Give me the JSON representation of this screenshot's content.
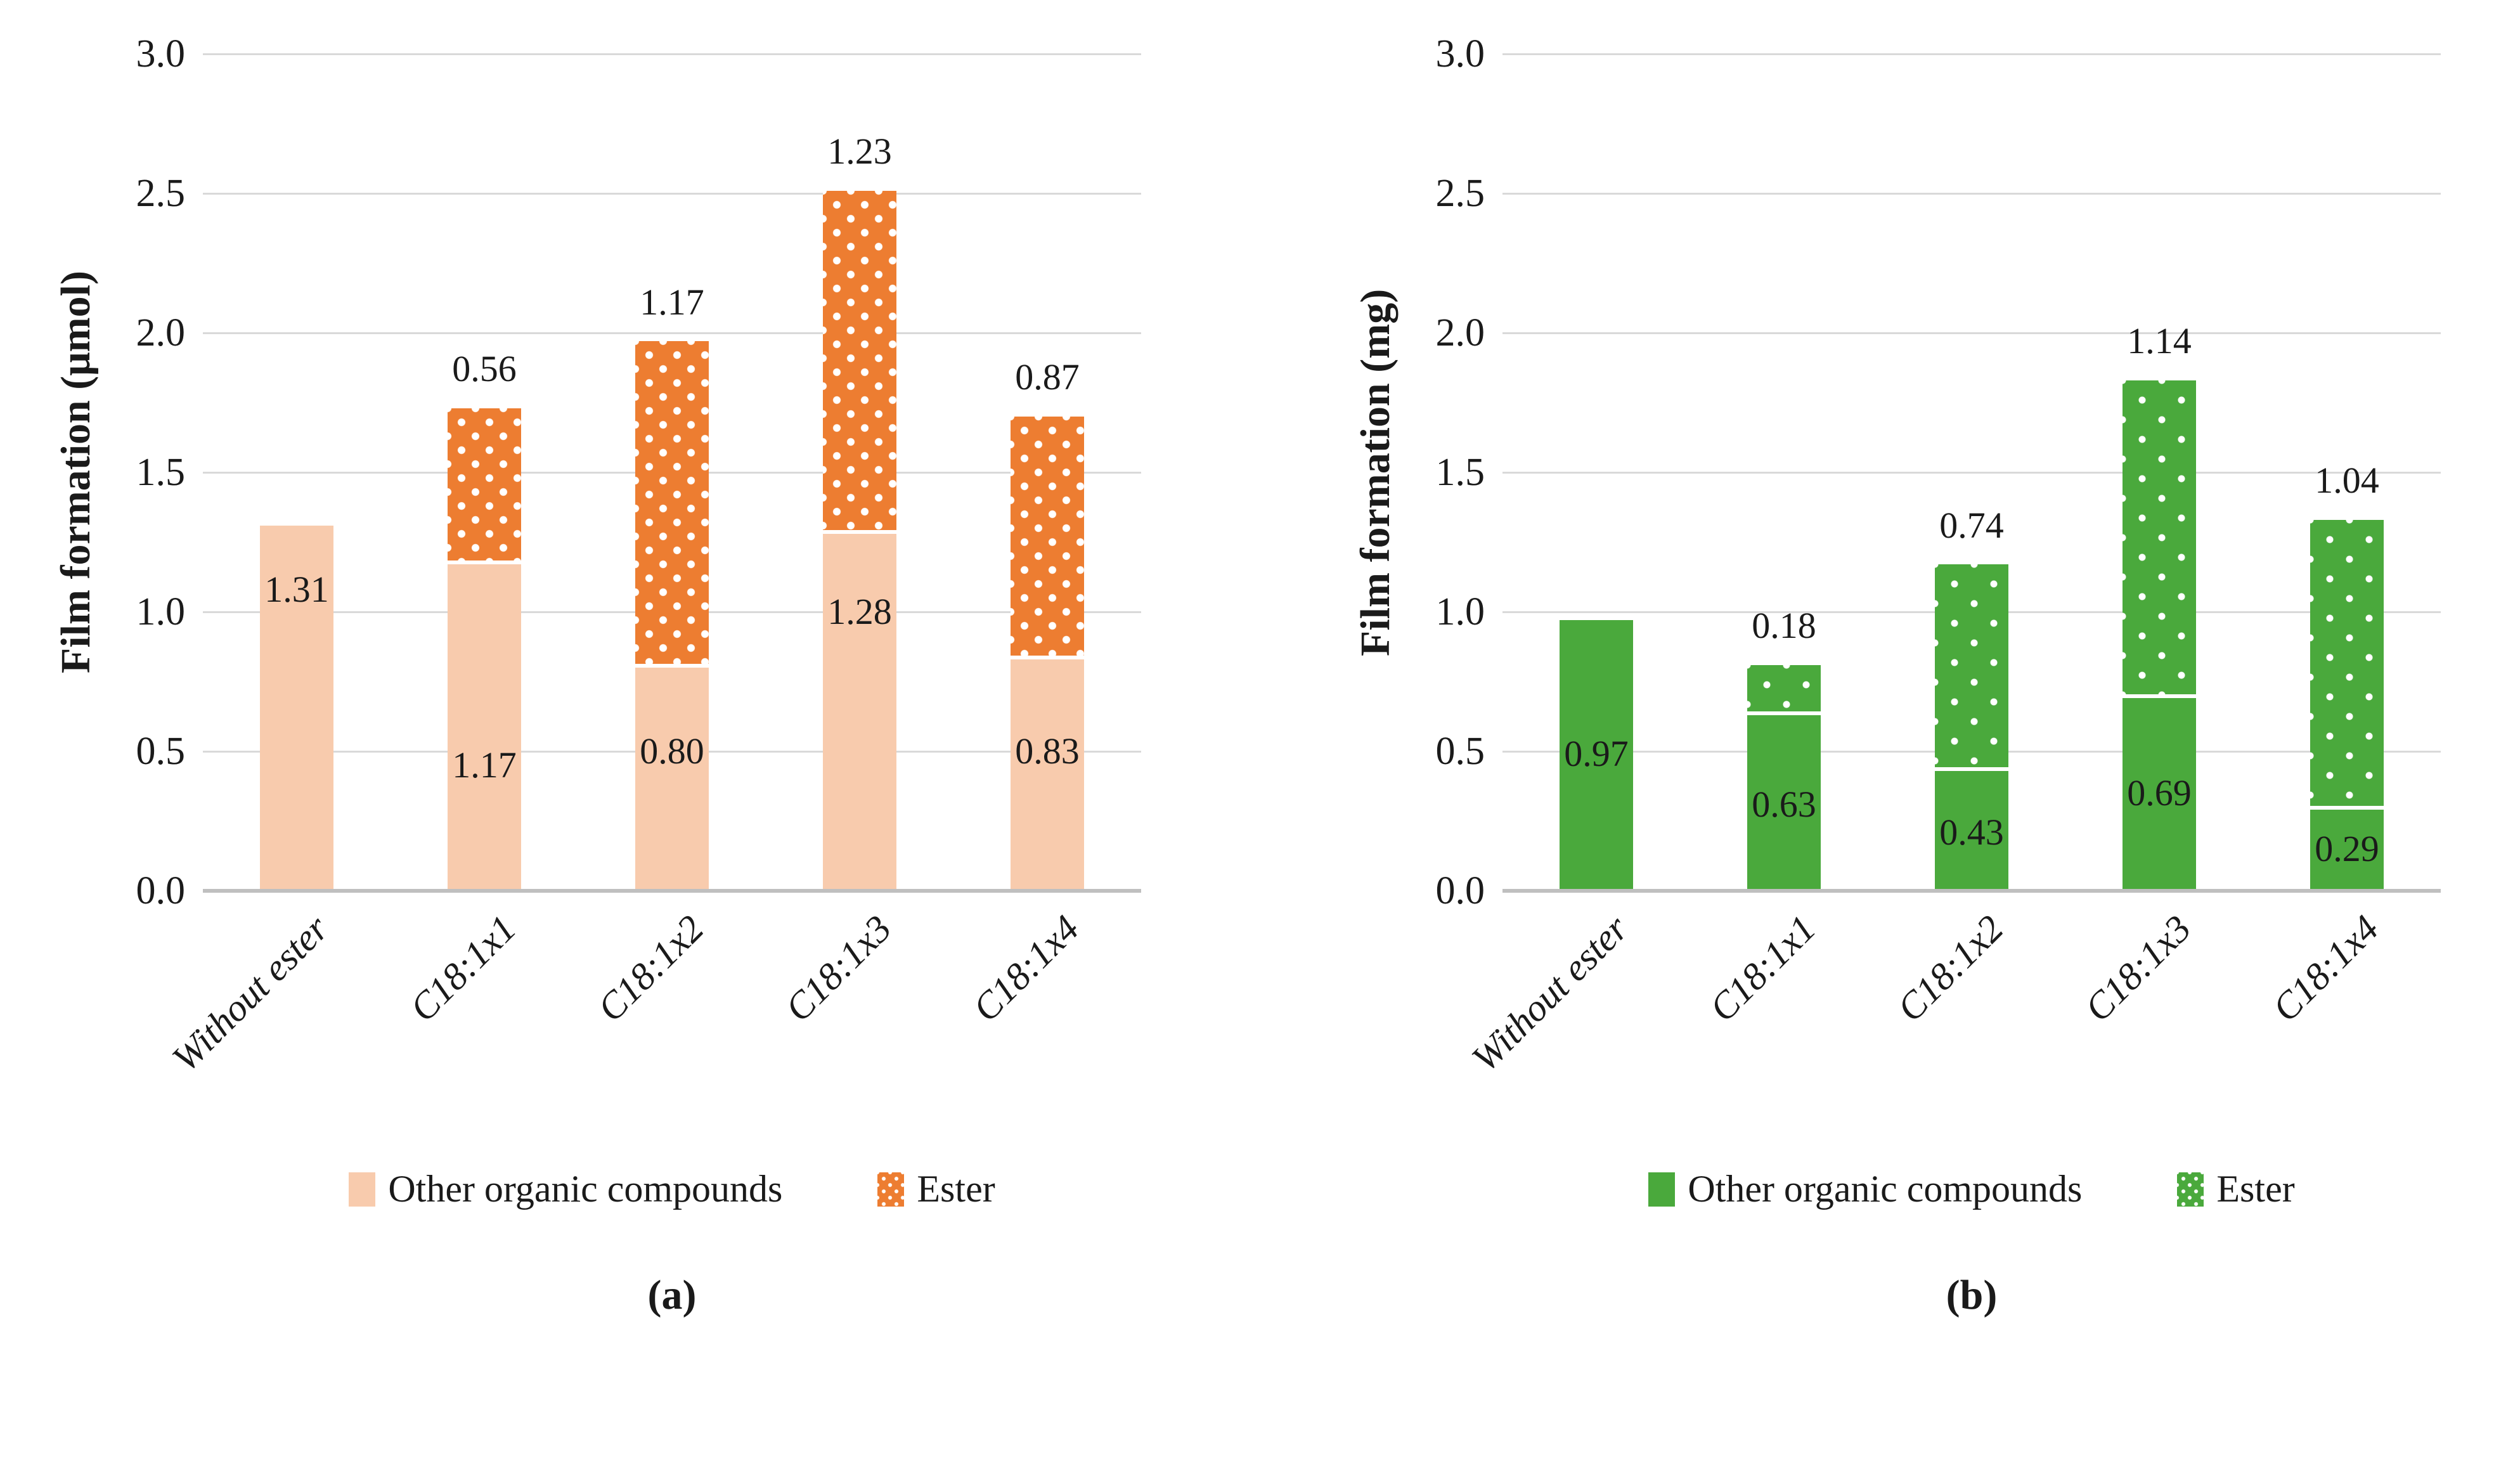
{
  "chart_data": [
    {
      "type": "bar",
      "subtype": "stacked",
      "caption": "(a)",
      "y_axis_title": "Film formation (μmol)",
      "categories": [
        "Without ester",
        "C18:1x1",
        "C18:1x2",
        "C18:1x3",
        "C18:1x4"
      ],
      "series": [
        {
          "name": "Other organic compounds",
          "pattern": "solid",
          "color": "#F8CBAD",
          "values": [
            1.31,
            1.17,
            0.8,
            1.28,
            0.83
          ],
          "labels": [
            "1.31",
            "1.17",
            "0.80",
            "1.28",
            "0.83"
          ]
        },
        {
          "name": "Ester",
          "pattern": "dotted",
          "color": "#ED7D31",
          "values": [
            0,
            0.56,
            1.17,
            1.23,
            0.87
          ],
          "labels": [
            "",
            "0.56",
            "1.17",
            "1.23",
            "0.87"
          ]
        }
      ],
      "label_y_bottom": [
        1.08,
        0.45,
        0.5,
        1.0,
        0.5
      ],
      "y_ticks": [
        "3.0",
        "2.5",
        "2.0",
        "1.5",
        "1.0",
        "0.5",
        "0.0"
      ],
      "ylim": [
        0,
        3.0
      ],
      "grid_step": 0.5,
      "grid": "horizontal",
      "legend_position": "bottom"
    },
    {
      "type": "bar",
      "subtype": "stacked",
      "caption": "(b)",
      "y_axis_title": "Film formation (mg)",
      "categories": [
        "Without ester",
        "C18:1x1",
        "C18:1x2",
        "C18:1x3",
        "C18:1x4"
      ],
      "series": [
        {
          "name": "Other organic compounds",
          "pattern": "solid",
          "color": "#4AA93C",
          "values": [
            0.97,
            0.63,
            0.43,
            0.69,
            0.29
          ],
          "labels": [
            "0.97",
            "0.63",
            "0.43",
            "0.69",
            "0.29"
          ]
        },
        {
          "name": "Ester",
          "pattern": "dotted",
          "color": "#4AA93C",
          "values": [
            0,
            0.18,
            0.74,
            1.14,
            1.04
          ],
          "labels": [
            "",
            "0.18",
            "0.74",
            "1.14",
            "1.04"
          ]
        }
      ],
      "label_y_bottom": [
        0.49,
        0.31,
        0.21,
        0.35,
        0.15
      ],
      "y_ticks": [
        "3.0",
        "2.5",
        "2.0",
        "1.5",
        "1.0",
        "0.5",
        "0.0"
      ],
      "ylim": [
        0,
        3.0
      ],
      "grid_step": 0.5,
      "grid": "horizontal",
      "legend_position": "bottom"
    }
  ]
}
